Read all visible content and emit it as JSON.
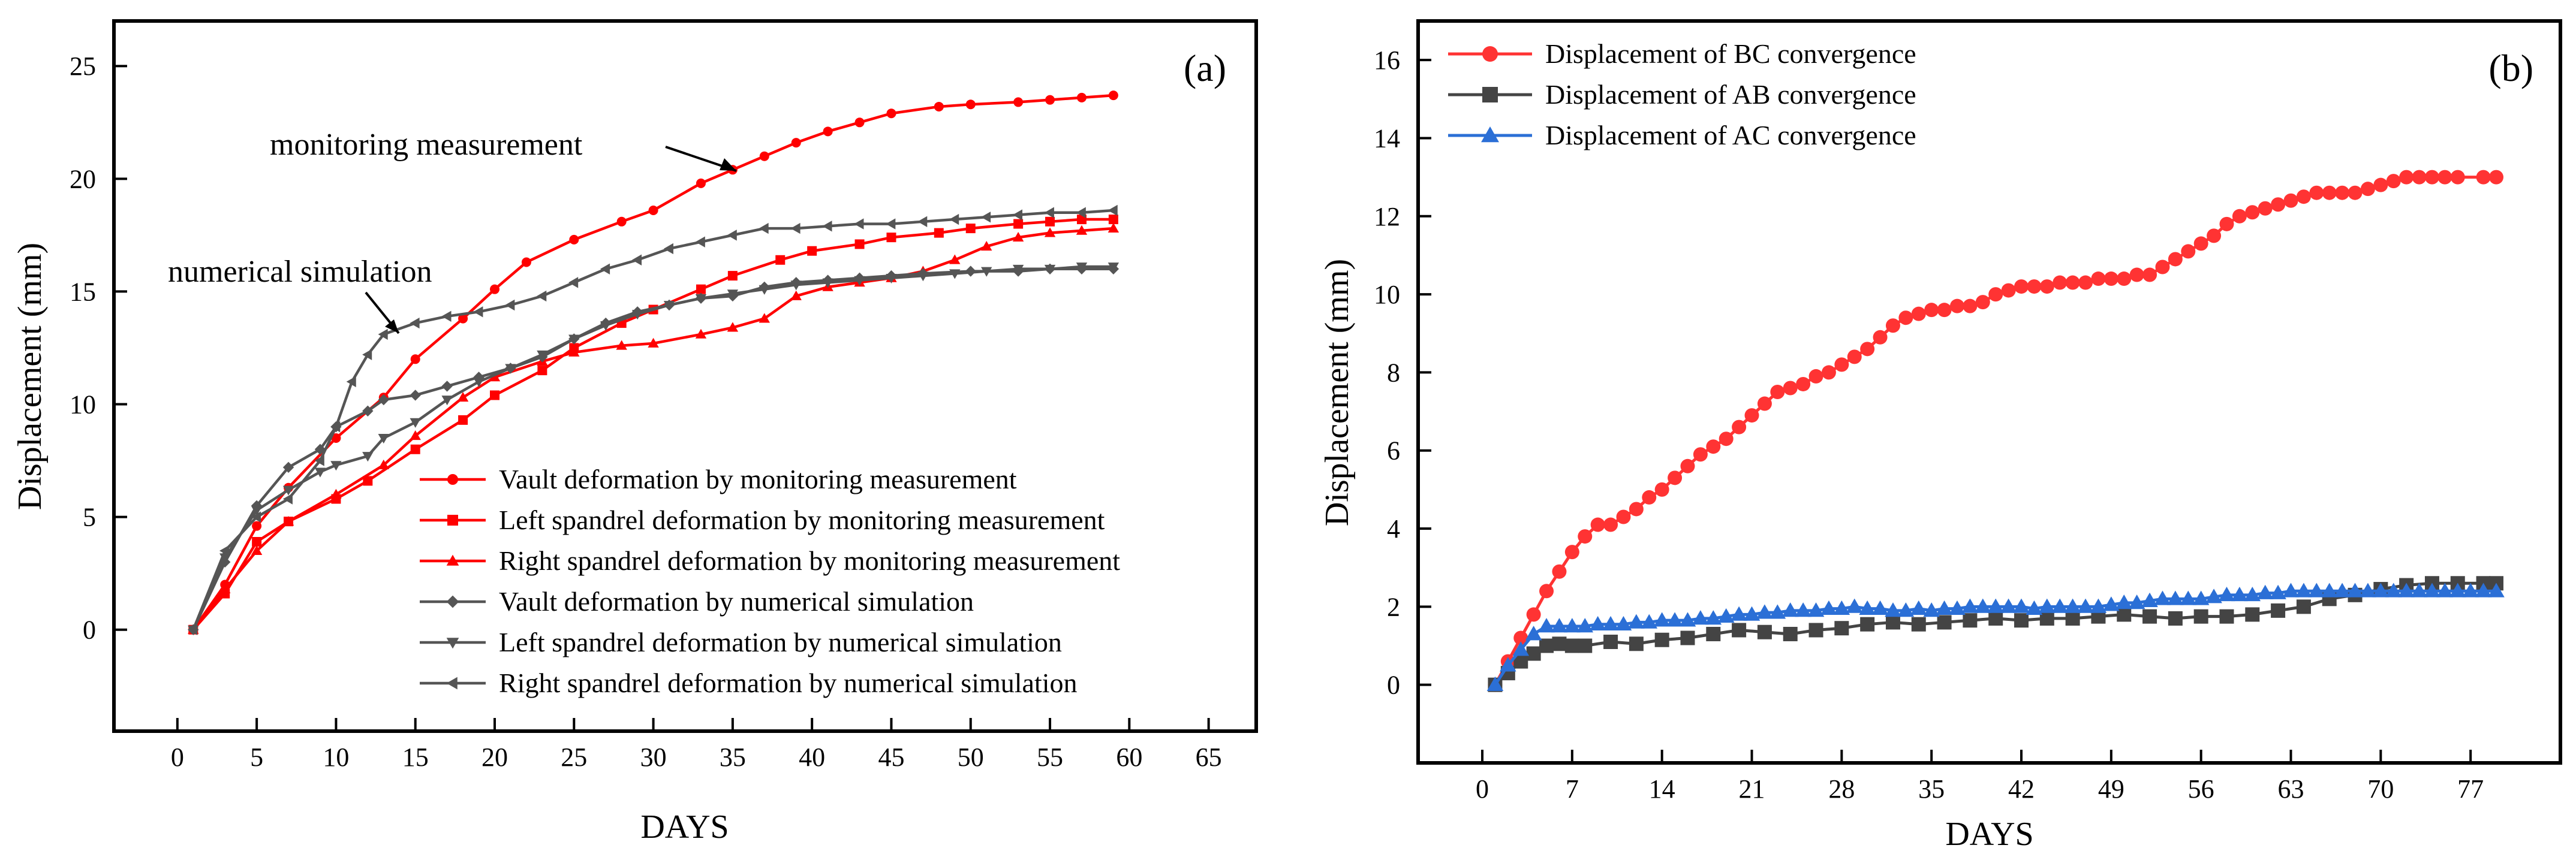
{
  "chart_data": [
    {
      "panel": "(a)",
      "type": "line",
      "xlabel": "DAYS",
      "ylabel": "Displacement (mm)",
      "xlim": [
        -4,
        68
      ],
      "ylim": [
        -4.5,
        27
      ],
      "xticks": [
        0,
        5,
        10,
        15,
        20,
        25,
        30,
        35,
        40,
        45,
        50,
        55,
        60,
        65
      ],
      "yticks": [
        0,
        5,
        10,
        15,
        20,
        25
      ],
      "grid": false,
      "legend": "bottom-right",
      "annotations": [
        {
          "text": "monitoring measurement"
        },
        {
          "text": "numerical simulation"
        }
      ],
      "series": [
        {
          "name": "Vault deformation by monitoring measurement",
          "color": "#ff0000",
          "marker": "circle",
          "x": [
            1,
            3,
            5,
            7,
            10,
            13,
            15,
            18,
            20,
            22,
            25,
            28,
            30,
            33,
            35,
            37,
            39,
            41,
            43,
            45,
            48,
            50,
            53,
            55,
            57,
            59
          ],
          "y": [
            0,
            2,
            4.6,
            6.3,
            8.5,
            10.3,
            12,
            13.8,
            15.1,
            16.3,
            17.3,
            18.1,
            18.6,
            19.8,
            20.4,
            21,
            21.6,
            22.1,
            22.5,
            22.9,
            23.2,
            23.3,
            23.4,
            23.5,
            23.6,
            23.7
          ]
        },
        {
          "name": "Left spandrel deformation by monitoring measurement",
          "color": "#ff0000",
          "marker": "square",
          "x": [
            1,
            3,
            5,
            7,
            10,
            12,
            15,
            18,
            20,
            23,
            25,
            28,
            30,
            33,
            35,
            38,
            40,
            43,
            45,
            48,
            50,
            53,
            55,
            57,
            59
          ],
          "y": [
            0,
            1.6,
            3.9,
            4.8,
            5.8,
            6.6,
            8,
            9.3,
            10.4,
            11.5,
            12.5,
            13.6,
            14.2,
            15.1,
            15.7,
            16.4,
            16.8,
            17.1,
            17.4,
            17.6,
            17.8,
            18,
            18.1,
            18.2,
            18.2
          ]
        },
        {
          "name": "Right spandrel deformation by monitoring measurement",
          "color": "#ff0000",
          "marker": "triangle-up",
          "x": [
            1,
            3,
            5,
            7,
            10,
            13,
            15,
            18,
            20,
            23,
            25,
            28,
            30,
            33,
            35,
            37,
            39,
            41,
            43,
            45,
            47,
            49,
            51,
            53,
            55,
            57,
            59
          ],
          "y": [
            0,
            1.8,
            3.5,
            4.8,
            6,
            7.3,
            8.6,
            10.3,
            11.2,
            11.9,
            12.3,
            12.6,
            12.7,
            13.1,
            13.4,
            13.8,
            14.8,
            15.2,
            15.4,
            15.6,
            15.9,
            16.4,
            17,
            17.4,
            17.6,
            17.7,
            17.8
          ]
        },
        {
          "name": "Vault deformation by numerical simulation",
          "color": "#555555",
          "marker": "diamond",
          "x": [
            1,
            3,
            5,
            7,
            9,
            10,
            12,
            13,
            15,
            17,
            19,
            21,
            23,
            25,
            27,
            29,
            31,
            33,
            35,
            37,
            39,
            41,
            43,
            45,
            47,
            50,
            53,
            55,
            57,
            59
          ],
          "y": [
            0,
            3,
            5.5,
            7.2,
            8,
            9,
            9.7,
            10.2,
            10.4,
            10.8,
            11.2,
            11.6,
            12.1,
            12.9,
            13.6,
            14.1,
            14.4,
            14.7,
            14.8,
            15.2,
            15.4,
            15.5,
            15.6,
            15.7,
            15.8,
            15.9,
            15.9,
            16,
            16,
            16
          ]
        },
        {
          "name": "Left spandrel deformation by numerical simulation",
          "color": "#555555",
          "marker": "triangle-down",
          "x": [
            1,
            3,
            5,
            7,
            9,
            10,
            12,
            13,
            15,
            17,
            19,
            21,
            23,
            25,
            27,
            29,
            31,
            33,
            35,
            37,
            39,
            41,
            43,
            45,
            47,
            49,
            51,
            53,
            55,
            57,
            59
          ],
          "y": [
            0,
            3.2,
            5.3,
            6.2,
            7,
            7.3,
            7.7,
            8.5,
            9.2,
            10.2,
            11,
            11.6,
            12.2,
            12.9,
            13.5,
            14,
            14.4,
            14.7,
            14.9,
            15.1,
            15.3,
            15.4,
            15.5,
            15.6,
            15.7,
            15.8,
            15.9,
            16,
            16,
            16.1,
            16.1
          ]
        },
        {
          "name": "Right spandrel deformation by numerical simulation",
          "color": "#555555",
          "marker": "triangle-left",
          "x": [
            1,
            3,
            5,
            7,
            9,
            10,
            11,
            12,
            13,
            15,
            17,
            19,
            21,
            23,
            25,
            27,
            29,
            31,
            33,
            35,
            37,
            39,
            41,
            43,
            45,
            47,
            49,
            51,
            53,
            55,
            57,
            59
          ],
          "y": [
            0,
            3.5,
            5,
            5.8,
            7.5,
            9,
            11,
            12.2,
            13.1,
            13.6,
            13.9,
            14.1,
            14.4,
            14.8,
            15.4,
            16,
            16.4,
            16.9,
            17.2,
            17.5,
            17.8,
            17.8,
            17.9,
            18,
            18,
            18.1,
            18.2,
            18.3,
            18.4,
            18.5,
            18.5,
            18.6
          ]
        }
      ]
    },
    {
      "panel": "(b)",
      "type": "line",
      "xlabel": "DAYS",
      "ylabel": "Displacement (mm)",
      "xlim": [
        -5,
        84
      ],
      "ylim": [
        -2,
        17
      ],
      "xticks": [
        0,
        7,
        14,
        21,
        28,
        35,
        42,
        49,
        56,
        63,
        70,
        77
      ],
      "yticks": [
        0,
        2,
        4,
        6,
        8,
        10,
        12,
        14,
        16
      ],
      "grid": false,
      "legend": "top-left",
      "series": [
        {
          "name": "Displacement of BC convergence",
          "color": "#ff3333",
          "marker": "circle",
          "x": [
            1,
            2,
            3,
            4,
            5,
            6,
            7,
            8,
            9,
            10,
            11,
            12,
            13,
            14,
            15,
            16,
            17,
            18,
            19,
            20,
            21,
            22,
            23,
            24,
            25,
            26,
            27,
            28,
            29,
            30,
            31,
            32,
            33,
            34,
            35,
            36,
            37,
            38,
            39,
            40,
            41,
            42,
            43,
            44,
            45,
            46,
            47,
            48,
            49,
            50,
            51,
            52,
            53,
            54,
            55,
            56,
            57,
            58,
            59,
            60,
            61,
            62,
            63,
            64,
            65,
            66,
            67,
            68,
            69,
            70,
            71,
            72,
            73,
            74,
            75,
            76,
            78,
            79
          ],
          "y": [
            0,
            0.6,
            1.2,
            1.8,
            2.4,
            2.9,
            3.4,
            3.8,
            4.1,
            4.1,
            4.3,
            4.5,
            4.8,
            5.0,
            5.3,
            5.6,
            5.9,
            6.1,
            6.3,
            6.6,
            6.9,
            7.2,
            7.5,
            7.6,
            7.7,
            7.9,
            8.0,
            8.2,
            8.4,
            8.6,
            8.9,
            9.2,
            9.4,
            9.5,
            9.6,
            9.6,
            9.7,
            9.7,
            9.8,
            10.0,
            10.1,
            10.2,
            10.2,
            10.2,
            10.3,
            10.3,
            10.3,
            10.4,
            10.4,
            10.4,
            10.5,
            10.5,
            10.7,
            10.9,
            11.1,
            11.3,
            11.5,
            11.8,
            12.0,
            12.1,
            12.2,
            12.3,
            12.4,
            12.5,
            12.6,
            12.6,
            12.6,
            12.6,
            12.7,
            12.8,
            12.9,
            13.0,
            13.0,
            13.0,
            13.0,
            13.0,
            13.0,
            13.0
          ]
        },
        {
          "name": "Displacement of AB convergence",
          "color": "#444444",
          "marker": "square",
          "x": [
            1,
            2,
            3,
            4,
            5,
            6,
            7,
            8,
            10,
            12,
            14,
            16,
            18,
            20,
            22,
            24,
            26,
            28,
            30,
            32,
            34,
            36,
            38,
            40,
            42,
            44,
            46,
            48,
            50,
            52,
            54,
            56,
            58,
            60,
            62,
            64,
            66,
            68,
            70,
            72,
            74,
            76,
            78,
            79
          ],
          "y": [
            0,
            0.3,
            0.6,
            0.8,
            1.0,
            1.05,
            1.0,
            1.0,
            1.1,
            1.05,
            1.15,
            1.2,
            1.3,
            1.4,
            1.35,
            1.3,
            1.4,
            1.45,
            1.55,
            1.6,
            1.55,
            1.6,
            1.65,
            1.7,
            1.65,
            1.7,
            1.7,
            1.75,
            1.8,
            1.75,
            1.7,
            1.75,
            1.75,
            1.8,
            1.9,
            2.0,
            2.2,
            2.3,
            2.45,
            2.55,
            2.6,
            2.6,
            2.6,
            2.6
          ]
        },
        {
          "name": "Displacement of AC convergence",
          "color": "#2b6fd6",
          "marker": "triangle-up",
          "x": [
            1,
            2,
            3,
            4,
            5,
            6,
            7,
            8,
            9,
            10,
            11,
            12,
            13,
            14,
            15,
            16,
            17,
            18,
            19,
            20,
            21,
            22,
            23,
            24,
            25,
            26,
            27,
            28,
            29,
            30,
            31,
            32,
            33,
            34,
            35,
            36,
            37,
            38,
            39,
            40,
            41,
            42,
            43,
            44,
            45,
            46,
            47,
            48,
            49,
            50,
            51,
            52,
            53,
            54,
            55,
            56,
            57,
            58,
            59,
            60,
            61,
            62,
            63,
            64,
            65,
            66,
            67,
            68,
            69,
            70,
            71,
            72,
            73,
            74,
            75,
            76,
            77,
            78,
            79
          ],
          "y": [
            0,
            0.5,
            0.9,
            1.3,
            1.5,
            1.5,
            1.5,
            1.5,
            1.55,
            1.55,
            1.55,
            1.6,
            1.6,
            1.65,
            1.65,
            1.65,
            1.7,
            1.7,
            1.75,
            1.8,
            1.8,
            1.85,
            1.85,
            1.9,
            1.9,
            1.9,
            1.95,
            1.95,
            2.0,
            1.95,
            1.95,
            1.9,
            1.9,
            1.95,
            1.9,
            1.95,
            1.95,
            2.0,
            2.0,
            2.0,
            2.0,
            2.0,
            1.95,
            2.0,
            2.0,
            2.0,
            2.0,
            2.0,
            2.05,
            2.1,
            2.1,
            2.15,
            2.2,
            2.2,
            2.2,
            2.2,
            2.25,
            2.3,
            2.3,
            2.3,
            2.35,
            2.35,
            2.4,
            2.4,
            2.4,
            2.4,
            2.4,
            2.4,
            2.4,
            2.4,
            2.4,
            2.4,
            2.4,
            2.4,
            2.4,
            2.4,
            2.4,
            2.4,
            2.4
          ]
        }
      ]
    }
  ]
}
